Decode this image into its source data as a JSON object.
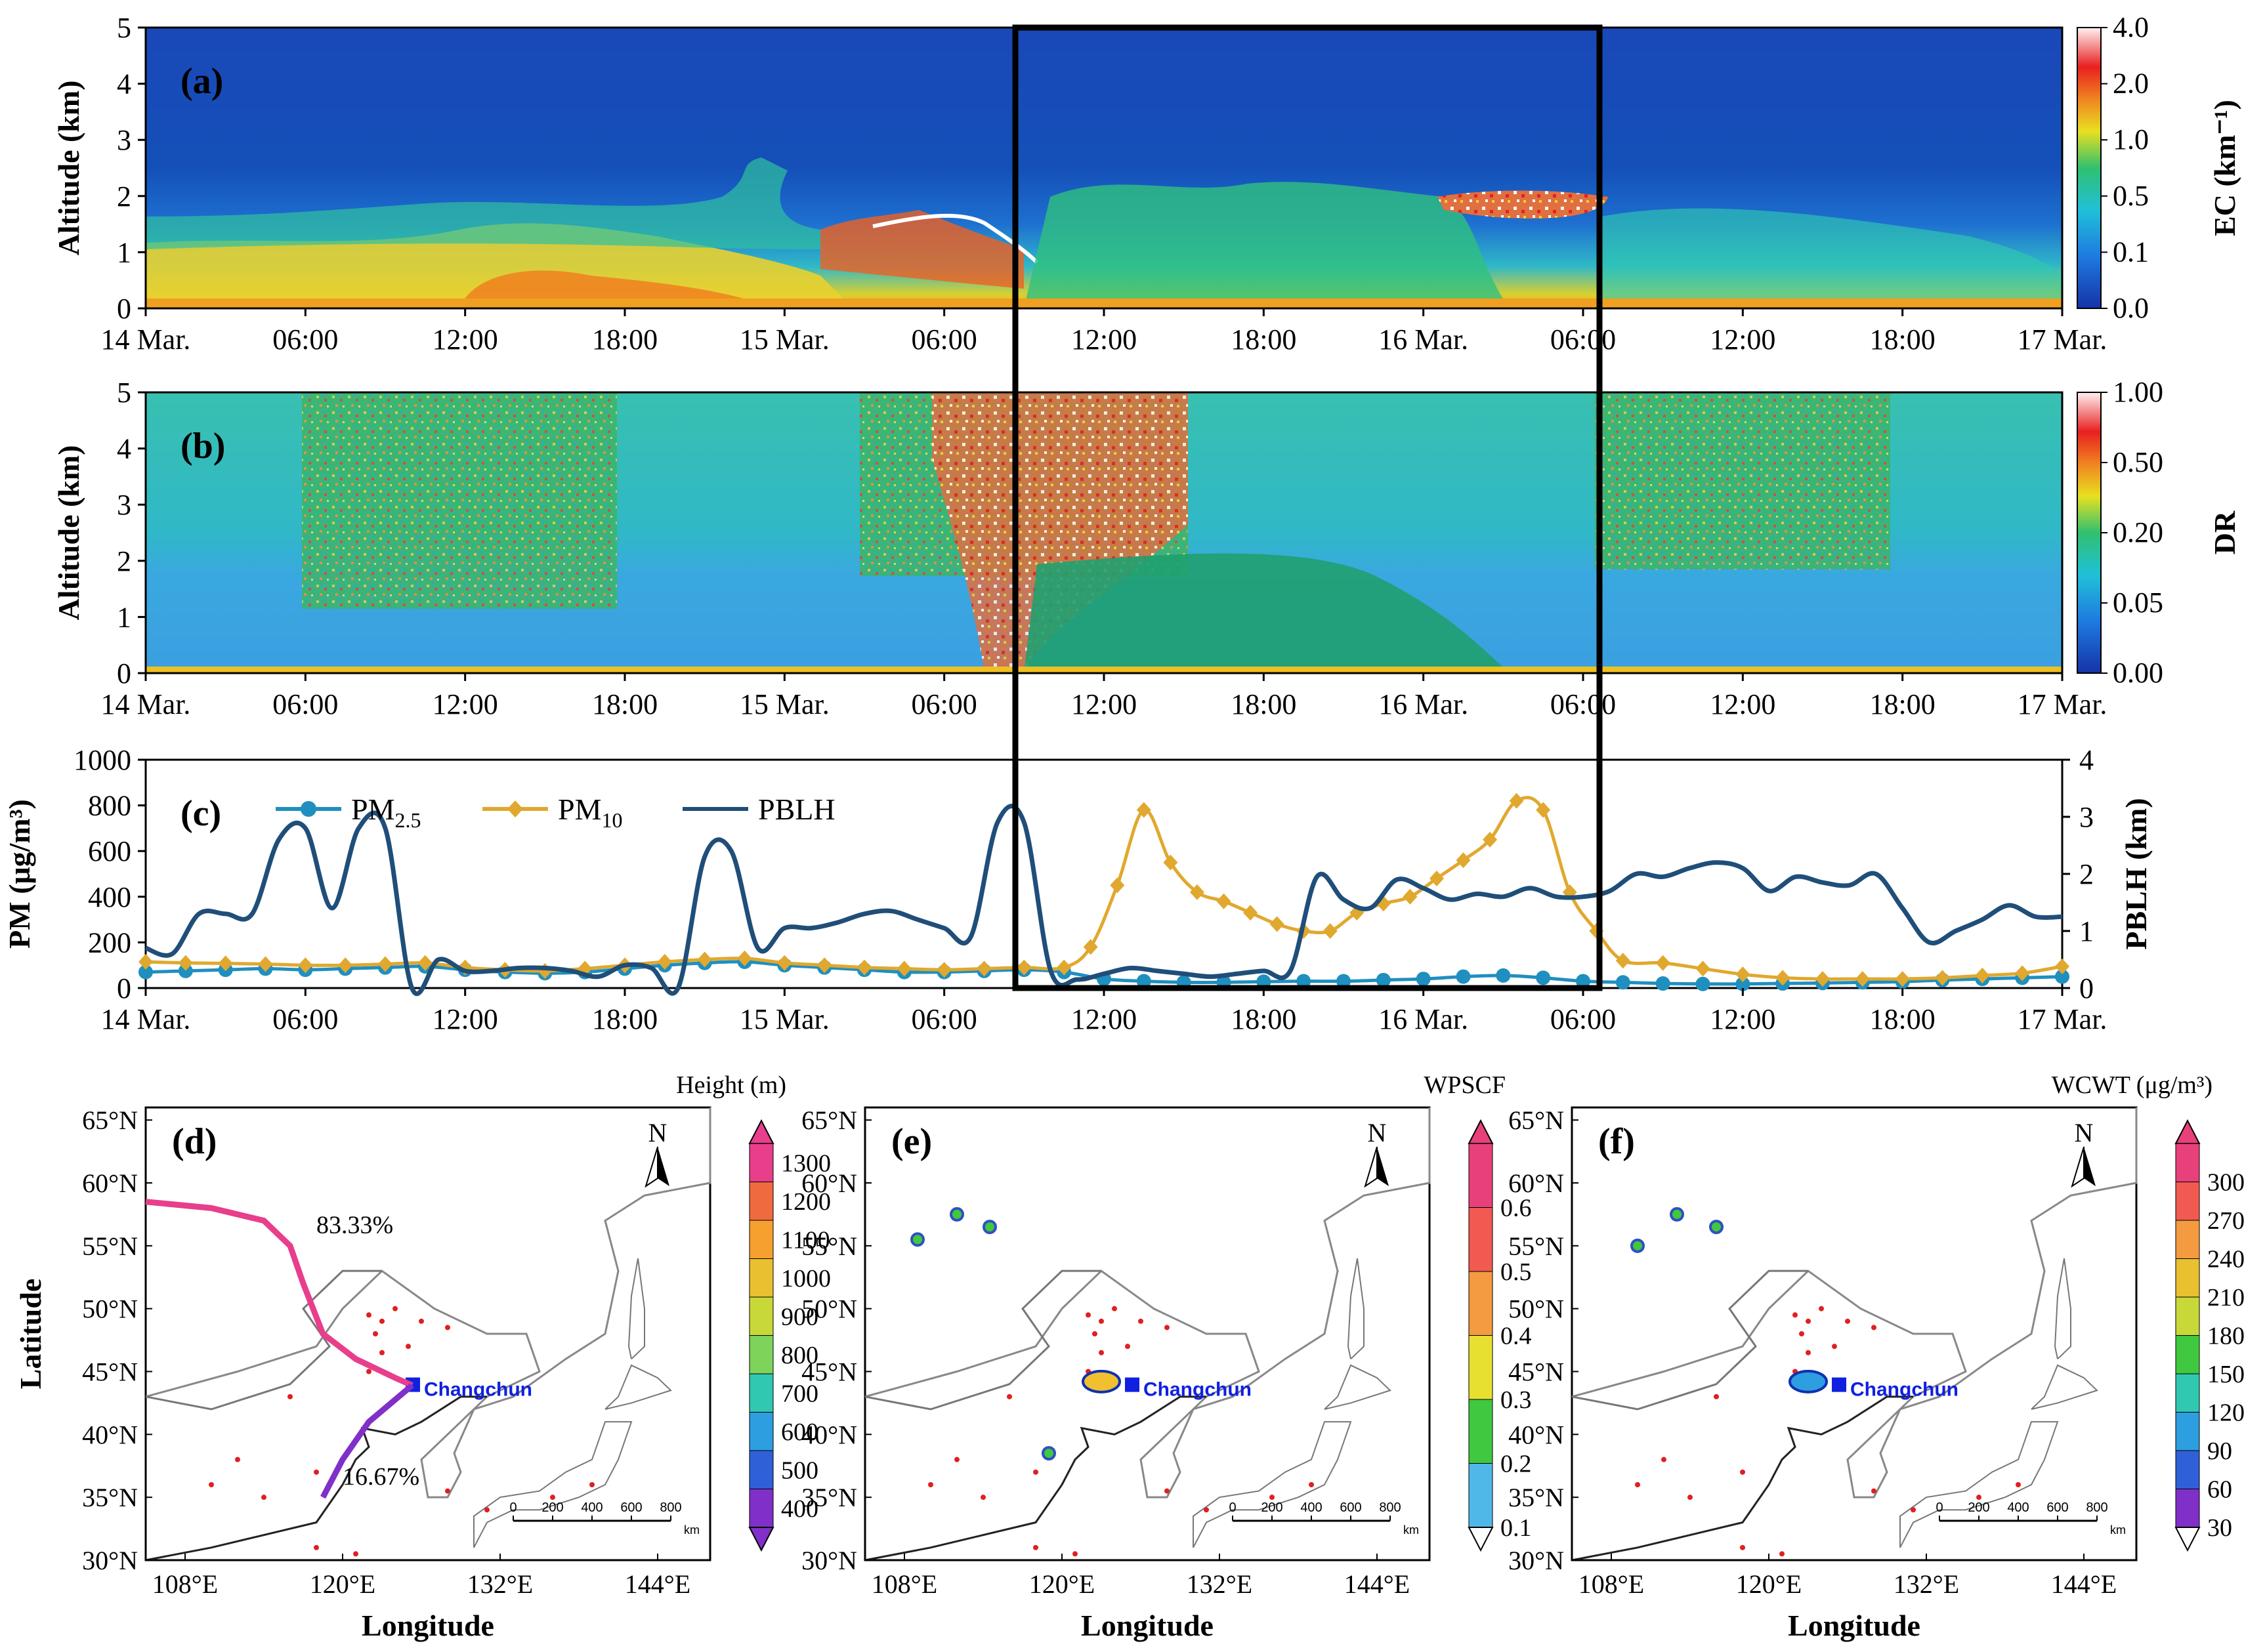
{
  "chart_data": [
    {
      "id": "a",
      "type": "heatmap",
      "panel_label": "(a)",
      "ylabel": "Altitude (km)",
      "ylim": [
        0,
        5
      ],
      "yticks": [
        "0",
        "1",
        "2",
        "3",
        "4",
        "5"
      ],
      "xlabels": [
        "14 Mar.",
        "06:00",
        "12:00",
        "18:00",
        "15 Mar.",
        "06:00",
        "12:00",
        "18:00",
        "16 Mar.",
        "06:00",
        "12:00",
        "18:00",
        "17 Mar."
      ],
      "colorbar_label": "EC (km⁻¹)",
      "colorbar_ticks": [
        "4.0",
        "2.0",
        "1.0",
        "0.5",
        "0.1",
        "0.0"
      ]
    },
    {
      "id": "b",
      "type": "heatmap",
      "panel_label": "(b)",
      "ylabel": "Altitude (km)",
      "ylim": [
        0,
        5
      ],
      "yticks": [
        "0",
        "1",
        "2",
        "3",
        "4",
        "5"
      ],
      "xlabels": [
        "14 Mar.",
        "06:00",
        "12:00",
        "18:00",
        "15 Mar.",
        "06:00",
        "12:00",
        "18:00",
        "16 Mar.",
        "06:00",
        "12:00",
        "18:00",
        "17 Mar."
      ],
      "colorbar_label": "DR",
      "colorbar_ticks": [
        "1.00",
        "0.50",
        "0.20",
        "0.05",
        "0.00"
      ]
    },
    {
      "id": "c",
      "type": "line",
      "panel_label": "(c)",
      "ylabel_left": "PM (μg/m³)",
      "ylabel_right": "PBLH (km)",
      "ylim_left": [
        0,
        1000
      ],
      "ylim_right": [
        0,
        4
      ],
      "yticks_left": [
        "0",
        "200",
        "400",
        "600",
        "800",
        "1000"
      ],
      "yticks_right": [
        "0",
        "1",
        "2",
        "3",
        "4"
      ],
      "xlim_hours": [
        0,
        72
      ],
      "xlabels": [
        "14 Mar.",
        "06:00",
        "12:00",
        "18:00",
        "15 Mar.",
        "06:00",
        "12:00",
        "18:00",
        "16 Mar.",
        "06:00",
        "12:00",
        "18:00",
        "17 Mar."
      ],
      "series": [
        {
          "name": "PM2.5",
          "legend": "PM",
          "legend_sub": "2.5",
          "color": "#1f8fbf",
          "marker": "circle",
          "x": [
            0,
            1.5,
            3,
            4.5,
            6,
            7.5,
            9,
            10.5,
            12,
            13.5,
            15,
            16.5,
            18,
            19.5,
            21,
            22.5,
            24,
            25.5,
            27,
            28.5,
            30,
            31.5,
            33,
            34.5,
            36,
            37.5,
            39,
            40.5,
            42,
            43.5,
            45,
            46.5,
            48,
            49.5,
            51,
            52.5,
            54,
            55.5,
            57,
            58.5,
            60,
            61.5,
            63,
            64.5,
            66,
            67.5,
            69,
            70.5,
            72
          ],
          "y": [
            70,
            75,
            80,
            85,
            80,
            85,
            90,
            95,
            80,
            70,
            65,
            70,
            85,
            100,
            110,
            115,
            100,
            90,
            80,
            70,
            70,
            75,
            80,
            70,
            40,
            30,
            25,
            25,
            28,
            30,
            30,
            35,
            40,
            50,
            55,
            45,
            30,
            25,
            20,
            18,
            18,
            20,
            22,
            25,
            28,
            35,
            40,
            45,
            50
          ]
        },
        {
          "name": "PM10",
          "legend": "PM",
          "legend_sub": "10",
          "color": "#e0a82e",
          "marker": "diamond",
          "x": [
            0,
            1.5,
            3,
            4.5,
            6,
            7.5,
            9,
            10.5,
            12,
            13.5,
            15,
            16.5,
            18,
            19.5,
            21,
            22.5,
            24,
            25.5,
            27,
            28.5,
            30,
            31.5,
            33,
            34.5,
            35.5,
            36.5,
            37.5,
            38.5,
            39.5,
            40.5,
            41.5,
            42.5,
            43.5,
            44.5,
            45.5,
            46.5,
            47.5,
            48.5,
            49.5,
            50.5,
            51.5,
            52.5,
            53.5,
            54.5,
            55.5,
            57,
            58.5,
            60,
            61.5,
            63,
            64.5,
            66,
            67.5,
            69,
            70.5,
            72
          ],
          "y": [
            115,
            110,
            108,
            105,
            100,
            100,
            105,
            110,
            90,
            80,
            75,
            85,
            100,
            115,
            125,
            130,
            110,
            100,
            90,
            85,
            80,
            85,
            90,
            90,
            180,
            450,
            780,
            550,
            420,
            380,
            330,
            280,
            250,
            250,
            330,
            370,
            400,
            480,
            560,
            650,
            820,
            780,
            420,
            250,
            120,
            110,
            85,
            60,
            45,
            40,
            40,
            40,
            45,
            55,
            65,
            95
          ]
        },
        {
          "name": "PBLH",
          "legend": "PBLH",
          "color": "#1f4e79",
          "marker": "none",
          "x": [
            0,
            1,
            2,
            3,
            4,
            5,
            6,
            7,
            8,
            9,
            10,
            11,
            12,
            13,
            14,
            15,
            16,
            17,
            18,
            19,
            20,
            21,
            22,
            23,
            24,
            25,
            26,
            27,
            28,
            29,
            30,
            31,
            32,
            33,
            34,
            35,
            36,
            37,
            38,
            39,
            40,
            41,
            42,
            43,
            44,
            45,
            46,
            47,
            48,
            49,
            50,
            51,
            52,
            53,
            54,
            55,
            56,
            57,
            58,
            59,
            60,
            61,
            62,
            63,
            64,
            65,
            66,
            67,
            68,
            69,
            70,
            71,
            72
          ],
          "y": [
            0.7,
            0.6,
            1.3,
            1.3,
            1.3,
            2.6,
            2.8,
            1.4,
            2.8,
            2.8,
            0.0,
            0.5,
            0.3,
            0.3,
            0.35,
            0.35,
            0.3,
            0.2,
            0.4,
            0.35,
            0.0,
            2.3,
            2.4,
            0.7,
            1.05,
            1.05,
            1.15,
            1.3,
            1.35,
            1.2,
            1.05,
            0.9,
            2.9,
            2.9,
            0.3,
            0.15,
            0.25,
            0.35,
            0.3,
            0.25,
            0.2,
            0.25,
            0.3,
            0.3,
            1.95,
            1.55,
            1.4,
            1.9,
            1.75,
            1.55,
            1.65,
            1.6,
            1.75,
            1.6,
            1.6,
            1.7,
            2.0,
            1.95,
            2.1,
            2.2,
            2.1,
            1.7,
            1.95,
            1.85,
            1.8,
            2.0,
            1.4,
            0.8,
            1.0,
            1.2,
            1.45,
            1.25,
            1.25
          ]
        }
      ]
    },
    {
      "id": "d",
      "type": "map",
      "panel_label": "(d)",
      "colorbar_title": "Height (m)",
      "colorbar_ticks": [
        "1300",
        "1200",
        "1100",
        "1000",
        "900",
        "800",
        "700",
        "600",
        "500",
        "400"
      ],
      "colorbar_colors": [
        "#e83e8c",
        "#f06a40",
        "#f6a030",
        "#e8c030",
        "#c8d838",
        "#7ed35a",
        "#30c8b0",
        "#2d9ee0",
        "#3060d8",
        "#8030c8"
      ],
      "annotations": [
        "83.33%",
        "16.67%"
      ],
      "site": "Changchun",
      "scale_labels": [
        "0",
        "200",
        "400",
        "600",
        "800"
      ],
      "scale_unit": "km"
    },
    {
      "id": "e",
      "type": "map",
      "panel_label": "(e)",
      "colorbar_title": "WPSCF",
      "colorbar_ticks": [
        "0.6",
        "0.5",
        "0.4",
        "0.3",
        "0.2",
        "0.1"
      ],
      "colorbar_colors": [
        "#e8407a",
        "#f05a50",
        "#f49a40",
        "#e8e030",
        "#40c840",
        "#50b8e8"
      ],
      "site": "Changchun",
      "scale_labels": [
        "0",
        "200",
        "400",
        "600",
        "800"
      ],
      "scale_unit": "km"
    },
    {
      "id": "f",
      "type": "map",
      "panel_label": "(f)",
      "colorbar_title": "WCWT (μg/m³)",
      "colorbar_ticks": [
        "300",
        "270",
        "240",
        "210",
        "180",
        "150",
        "120",
        "90",
        "60",
        "30"
      ],
      "colorbar_colors": [
        "#e8407a",
        "#f05a50",
        "#f49a40",
        "#e8c030",
        "#c8d838",
        "#40c840",
        "#30c8b0",
        "#2d9ee0",
        "#3060d8",
        "#8030c8"
      ],
      "site": "Changchun",
      "scale_labels": [
        "0",
        "200",
        "400",
        "600",
        "800"
      ],
      "scale_unit": "km"
    }
  ],
  "maps": {
    "ylabel": "Latitude",
    "xlabel": "Longitude",
    "lat_ticks": [
      "65°N",
      "60°N",
      "55°N",
      "50°N",
      "45°N",
      "40°N",
      "35°N",
      "30°N"
    ],
    "lon_ticks": [
      "108°E",
      "120°E",
      "132°E",
      "144°E"
    ],
    "north_label": "N"
  }
}
